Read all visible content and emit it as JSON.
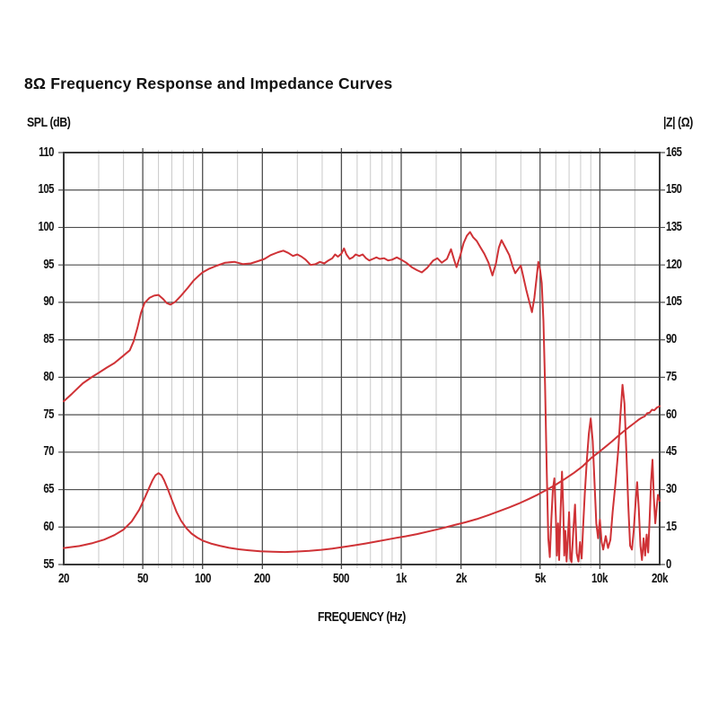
{
  "title": "8Ω Frequency Response and Impedance Curves",
  "colors": {
    "curve": "#cf3236",
    "grid_major": "#4f4f4f",
    "grid_minor": "#c9c9c9",
    "border": "#383838",
    "text": "#111111"
  },
  "chart_data": {
    "type": "line",
    "title": "8Ω Frequency Response and Impedance Curves",
    "x_scale": "log",
    "grid": "on",
    "legend": "none",
    "x_axis": {
      "label": "FREQUENCY (Hz)",
      "range": [
        20,
        20000
      ],
      "major_ticks": [
        {
          "f": 20,
          "label": "20"
        },
        {
          "f": 50,
          "label": "50"
        },
        {
          "f": 100,
          "label": "100"
        },
        {
          "f": 200,
          "label": "200"
        },
        {
          "f": 500,
          "label": "500"
        },
        {
          "f": 1000,
          "label": "1k"
        },
        {
          "f": 2000,
          "label": "2k"
        },
        {
          "f": 5000,
          "label": "5k"
        },
        {
          "f": 10000,
          "label": "10k"
        },
        {
          "f": 20000,
          "label": "20k"
        }
      ],
      "minor_ticks": [
        30,
        40,
        60,
        70,
        80,
        90,
        150,
        300,
        400,
        600,
        700,
        800,
        900,
        1500,
        3000,
        4000,
        6000,
        7000,
        8000,
        9000,
        15000
      ]
    },
    "left_axis": {
      "label": "SPL (dB)",
      "range": [
        55,
        110
      ],
      "ticks": [
        110,
        105,
        100,
        95,
        90,
        85,
        80,
        75,
        70,
        65,
        60,
        55
      ]
    },
    "right_axis": {
      "label": "|Z| (Ω)",
      "range": [
        0,
        165
      ],
      "ticks": [
        165,
        150,
        135,
        120,
        105,
        90,
        75,
        60,
        45,
        30,
        15,
        0
      ]
    },
    "series": [
      {
        "name": "frequency-response",
        "axis": "left",
        "unit": "dB",
        "points": [
          [
            20,
            76.8
          ],
          [
            22,
            77.8
          ],
          [
            25,
            79.2
          ],
          [
            28,
            80.1
          ],
          [
            30,
            80.6
          ],
          [
            33,
            81.3
          ],
          [
            36,
            81.9
          ],
          [
            40,
            82.9
          ],
          [
            43,
            83.6
          ],
          [
            45,
            84.8
          ],
          [
            47,
            86.6
          ],
          [
            49,
            88.6
          ],
          [
            51,
            89.9
          ],
          [
            54,
            90.6
          ],
          [
            57,
            90.9
          ],
          [
            60,
            91.0
          ],
          [
            63,
            90.5
          ],
          [
            66,
            89.9
          ],
          [
            69,
            89.7
          ],
          [
            73,
            90.1
          ],
          [
            78,
            90.9
          ],
          [
            84,
            91.9
          ],
          [
            90,
            92.9
          ],
          [
            96,
            93.6
          ],
          [
            100,
            94.0
          ],
          [
            108,
            94.5
          ],
          [
            118,
            94.9
          ],
          [
            130,
            95.3
          ],
          [
            145,
            95.4
          ],
          [
            160,
            95.1
          ],
          [
            175,
            95.2
          ],
          [
            190,
            95.5
          ],
          [
            205,
            95.8
          ],
          [
            220,
            96.3
          ],
          [
            240,
            96.7
          ],
          [
            255,
            96.9
          ],
          [
            270,
            96.6
          ],
          [
            285,
            96.2
          ],
          [
            300,
            96.4
          ],
          [
            315,
            96.1
          ],
          [
            330,
            95.7
          ],
          [
            350,
            95.0
          ],
          [
            370,
            95.1
          ],
          [
            390,
            95.4
          ],
          [
            410,
            95.2
          ],
          [
            430,
            95.6
          ],
          [
            450,
            95.9
          ],
          [
            465,
            96.4
          ],
          [
            480,
            96.1
          ],
          [
            500,
            96.5
          ],
          [
            515,
            97.2
          ],
          [
            530,
            96.4
          ],
          [
            550,
            95.8
          ],
          [
            570,
            96.0
          ],
          [
            590,
            96.4
          ],
          [
            615,
            96.2
          ],
          [
            640,
            96.4
          ],
          [
            665,
            95.9
          ],
          [
            690,
            95.6
          ],
          [
            720,
            95.8
          ],
          [
            750,
            96.0
          ],
          [
            780,
            95.8
          ],
          [
            820,
            95.9
          ],
          [
            860,
            95.6
          ],
          [
            900,
            95.7
          ],
          [
            950,
            96.0
          ],
          [
            1000,
            95.7
          ],
          [
            1060,
            95.3
          ],
          [
            1130,
            94.7
          ],
          [
            1200,
            94.3
          ],
          [
            1270,
            94.0
          ],
          [
            1350,
            94.6
          ],
          [
            1450,
            95.6
          ],
          [
            1520,
            95.9
          ],
          [
            1600,
            95.3
          ],
          [
            1700,
            95.8
          ],
          [
            1780,
            97.1
          ],
          [
            1850,
            95.6
          ],
          [
            1900,
            94.7
          ],
          [
            1980,
            96.2
          ],
          [
            2060,
            97.9
          ],
          [
            2140,
            98.9
          ],
          [
            2220,
            99.4
          ],
          [
            2300,
            98.7
          ],
          [
            2400,
            98.2
          ],
          [
            2500,
            97.4
          ],
          [
            2620,
            96.5
          ],
          [
            2750,
            95.3
          ],
          [
            2880,
            93.6
          ],
          [
            3000,
            95.2
          ],
          [
            3100,
            97.3
          ],
          [
            3200,
            98.3
          ],
          [
            3350,
            97.3
          ],
          [
            3500,
            96.3
          ],
          [
            3650,
            94.7
          ],
          [
            3750,
            93.9
          ],
          [
            3870,
            94.4
          ],
          [
            4000,
            94.9
          ],
          [
            4120,
            93.4
          ],
          [
            4260,
            91.7
          ],
          [
            4400,
            90.2
          ],
          [
            4550,
            88.7
          ],
          [
            4680,
            90.6
          ],
          [
            4800,
            93.2
          ],
          [
            4900,
            95.4
          ],
          [
            5000,
            94.4
          ],
          [
            5100,
            92.6
          ],
          [
            5200,
            87.5
          ],
          [
            5300,
            79.0
          ],
          [
            5400,
            68.0
          ],
          [
            5500,
            58.5
          ],
          [
            5600,
            56.0
          ],
          [
            5700,
            61.0
          ],
          [
            5800,
            65.0
          ],
          [
            5900,
            66.5
          ],
          [
            6000,
            61.5
          ],
          [
            6080,
            56.2
          ],
          [
            6160,
            60.5
          ],
          [
            6240,
            55.6
          ],
          [
            6350,
            62.5
          ],
          [
            6450,
            67.4
          ],
          [
            6550,
            62.0
          ],
          [
            6620,
            56.2
          ],
          [
            6700,
            59.5
          ],
          [
            6800,
            55.4
          ],
          [
            6900,
            58.5
          ],
          [
            7000,
            62.0
          ],
          [
            7100,
            55.8
          ],
          [
            7200,
            55.3
          ],
          [
            7350,
            59.5
          ],
          [
            7500,
            63.0
          ],
          [
            7650,
            56.5
          ],
          [
            7800,
            55.4
          ],
          [
            7950,
            58.0
          ],
          [
            8100,
            55.8
          ],
          [
            8250,
            60.5
          ],
          [
            8400,
            64.5
          ],
          [
            8600,
            69.0
          ],
          [
            8800,
            72.5
          ],
          [
            9000,
            74.5
          ],
          [
            9200,
            71.5
          ],
          [
            9400,
            66.0
          ],
          [
            9600,
            60.5
          ],
          [
            9800,
            58.5
          ],
          [
            10000,
            61.0
          ],
          [
            10200,
            58.0
          ],
          [
            10400,
            57.0
          ],
          [
            10700,
            58.8
          ],
          [
            11000,
            57.2
          ],
          [
            11300,
            58.3
          ],
          [
            11600,
            62.0
          ],
          [
            12000,
            66.0
          ],
          [
            12400,
            70.5
          ],
          [
            12700,
            75.0
          ],
          [
            13000,
            79.0
          ],
          [
            13300,
            76.5
          ],
          [
            13600,
            70.0
          ],
          [
            13900,
            63.0
          ],
          [
            14200,
            57.5
          ],
          [
            14500,
            57.0
          ],
          [
            14800,
            59.5
          ],
          [
            15100,
            63.0
          ],
          [
            15400,
            66.0
          ],
          [
            15700,
            62.5
          ],
          [
            16000,
            57.5
          ],
          [
            16300,
            55.6
          ],
          [
            16600,
            58.5
          ],
          [
            16900,
            56.2
          ],
          [
            17200,
            59.0
          ],
          [
            17500,
            56.6
          ],
          [
            17800,
            61.0
          ],
          [
            18100,
            66.0
          ],
          [
            18400,
            69.0
          ],
          [
            18700,
            64.0
          ],
          [
            19000,
            60.5
          ],
          [
            19300,
            62.5
          ],
          [
            19600,
            64.3
          ],
          [
            20000,
            63.5
          ]
        ]
      },
      {
        "name": "impedance",
        "axis": "right",
        "unit": "ohm",
        "points": [
          [
            20,
            6.6
          ],
          [
            24,
            7.4
          ],
          [
            28,
            8.6
          ],
          [
            32,
            10.0
          ],
          [
            36,
            11.8
          ],
          [
            40,
            14.0
          ],
          [
            44,
            17.3
          ],
          [
            48,
            22.0
          ],
          [
            51,
            26.5
          ],
          [
            54,
            31.0
          ],
          [
            56,
            33.8
          ],
          [
            58,
            35.8
          ],
          [
            60,
            36.6
          ],
          [
            62,
            35.8
          ],
          [
            64,
            33.8
          ],
          [
            67,
            30.0
          ],
          [
            70,
            26.0
          ],
          [
            74,
            21.0
          ],
          [
            78,
            17.5
          ],
          [
            83,
            14.5
          ],
          [
            88,
            12.4
          ],
          [
            94,
            10.8
          ],
          [
            100,
            9.6
          ],
          [
            110,
            8.4
          ],
          [
            122,
            7.5
          ],
          [
            136,
            6.7
          ],
          [
            152,
            6.1
          ],
          [
            170,
            5.7
          ],
          [
            195,
            5.3
          ],
          [
            225,
            5.1
          ],
          [
            260,
            5.0
          ],
          [
            300,
            5.2
          ],
          [
            345,
            5.5
          ],
          [
            395,
            5.9
          ],
          [
            450,
            6.4
          ],
          [
            510,
            7.0
          ],
          [
            580,
            7.7
          ],
          [
            660,
            8.4
          ],
          [
            750,
            9.2
          ],
          [
            850,
            10.0
          ],
          [
            950,
            10.7
          ],
          [
            1050,
            11.3
          ],
          [
            1200,
            12.2
          ],
          [
            1400,
            13.4
          ],
          [
            1600,
            14.5
          ],
          [
            1850,
            15.8
          ],
          [
            2100,
            16.9
          ],
          [
            2400,
            18.2
          ],
          [
            2750,
            19.8
          ],
          [
            3100,
            21.3
          ],
          [
            3500,
            22.9
          ],
          [
            3900,
            24.4
          ],
          [
            4400,
            26.3
          ],
          [
            4900,
            28.1
          ],
          [
            5400,
            29.9
          ],
          [
            6000,
            32.0
          ],
          [
            6700,
            34.4
          ],
          [
            7400,
            36.7
          ],
          [
            8200,
            39.4
          ],
          [
            9000,
            42.5
          ],
          [
            9800,
            44.8
          ],
          [
            10600,
            47.0
          ],
          [
            11500,
            49.3
          ],
          [
            12400,
            51.6
          ],
          [
            13300,
            53.6
          ],
          [
            14200,
            55.4
          ],
          [
            15000,
            56.8
          ],
          [
            15800,
            58.2
          ],
          [
            16400,
            59.0
          ],
          [
            16800,
            59.3
          ],
          [
            17300,
            60.6
          ],
          [
            17800,
            60.8
          ],
          [
            18300,
            62.0
          ],
          [
            18800,
            61.8
          ],
          [
            19400,
            62.9
          ],
          [
            20000,
            63.4
          ]
        ]
      }
    ]
  }
}
